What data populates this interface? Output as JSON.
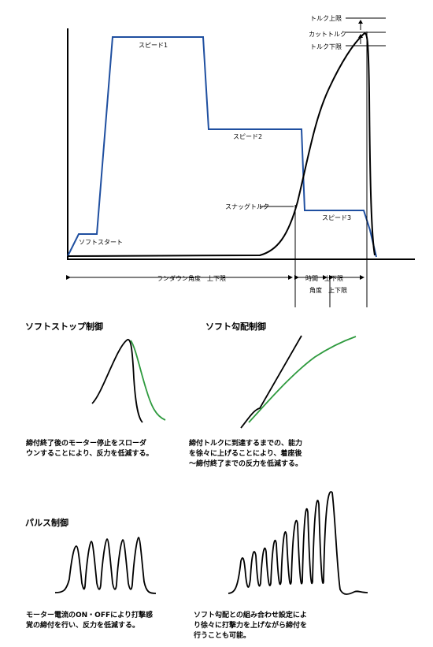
{
  "top": {
    "labels": {
      "speed1": "スピード1",
      "speed2": "スピード2",
      "speed3": "スピード3",
      "soft_start": "ソフトスタート",
      "snug_torque": "スナッグトルク",
      "torque_upper": "トルク上限",
      "cut_torque": "カットトルク",
      "torque_lower": "トルク下限",
      "random_angle": "ランダウン角度　上下限",
      "time_range": "時間　上下限",
      "angle_range": "角度　上下限"
    },
    "colors": {
      "speed_line": "#1f4fa0",
      "torque_line": "#000000"
    }
  },
  "panels": {
    "soft_stop": {
      "title": "ソフトストップ制御",
      "caption": "締付終了後のモーター停止をスローダ\nウンすることにより、反力を低減する。",
      "line_color": "#2e9a3e"
    },
    "soft_gradient": {
      "title": "ソフト勾配制御",
      "caption": "締付トルクに到達するまでの、能力\nを徐々に上げることにより、着座後\n～締付終了までの反力を低減する。",
      "line_color": "#2e9a3e"
    },
    "pulse": {
      "title": "パルス制御",
      "caption": "モーター電流のON・OFFにより打撃感\n覚の締付を行い、反力を低減する。"
    },
    "pulse_gradient": {
      "caption": "ソフト勾配との組み合わせ設定によ\nり徐々に打撃力を上げながら締付を\n行うことも可能。"
    }
  }
}
